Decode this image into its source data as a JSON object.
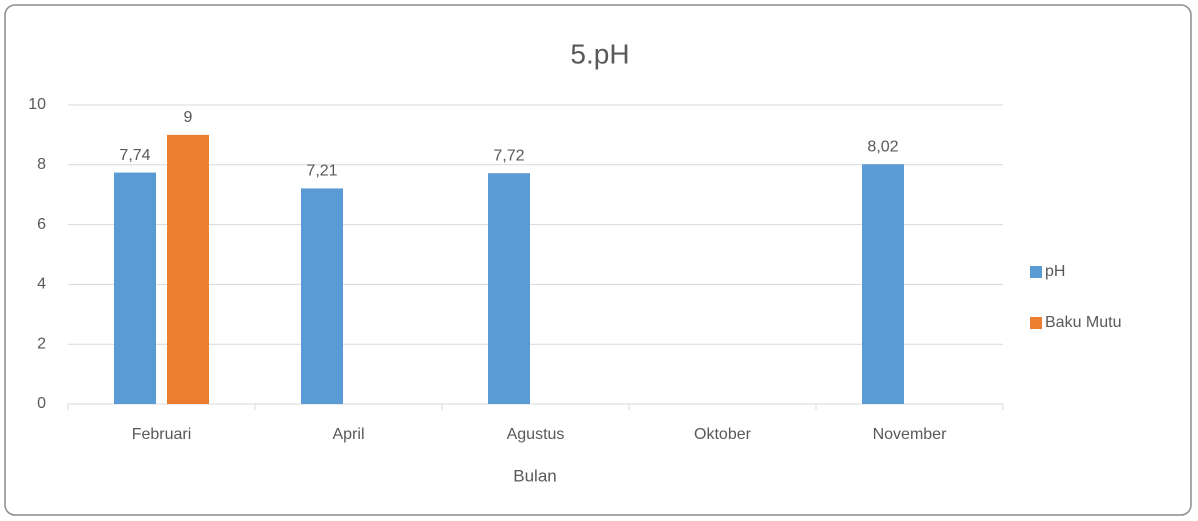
{
  "chart_data": {
    "type": "bar",
    "title": "5.pH",
    "xlabel": "Bulan",
    "categories": [
      "Februari",
      "April",
      "Agustus",
      "Oktober",
      "November"
    ],
    "series": [
      {
        "name": "pH",
        "color": "#5b9bd5",
        "values": [
          7.74,
          7.21,
          7.72,
          null,
          8.02
        ],
        "value_labels": [
          "7,74",
          "7,21",
          "7,72",
          null,
          "8,02"
        ]
      },
      {
        "name": "Baku Mutu",
        "color": "#ed7d31",
        "values": [
          9,
          null,
          null,
          null,
          null
        ]
      }
    ],
    "ylim": [
      0,
      10
    ],
    "yticks": [
      0,
      2,
      4,
      6,
      8,
      10
    ],
    "grid": true,
    "legend": "right"
  }
}
